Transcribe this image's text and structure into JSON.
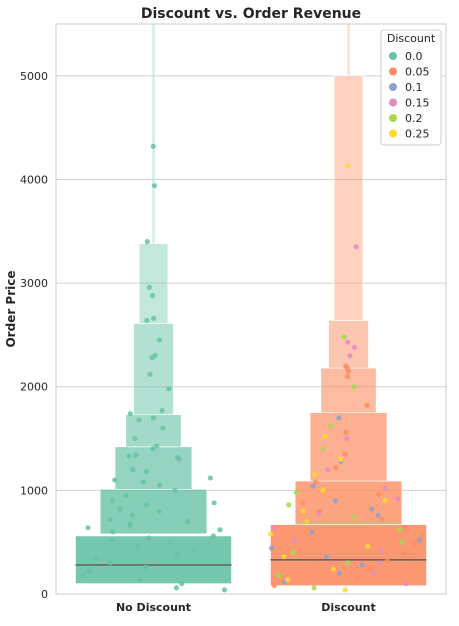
{
  "chart_data": {
    "type": "boxen",
    "title": "Discount vs. Order Revenue",
    "xlabel": "",
    "ylabel": "Order Price",
    "ylim": [
      0,
      5500
    ],
    "yticks": [
      0,
      1000,
      2000,
      3000,
      4000,
      5000
    ],
    "categories": [
      "No Discount",
      "Discount"
    ],
    "grid": true,
    "legend": {
      "title": "Discount",
      "placement": "top-right",
      "entries": [
        {
          "label": "0.0",
          "color": "#66c2a5"
        },
        {
          "label": "0.05",
          "color": "#fc8d62"
        },
        {
          "label": "0.1",
          "color": "#8da0cb"
        },
        {
          "label": "0.15",
          "color": "#e78ac3"
        },
        {
          "label": "0.2",
          "color": "#a6d854"
        },
        {
          "label": "0.25",
          "color": "#ffd92f"
        }
      ]
    },
    "boxen": [
      {
        "category": "No Discount",
        "color": "#66c2a5",
        "median": 280,
        "levels": [
          {
            "low": 100,
            "high": 560
          },
          {
            "low": 580,
            "high": 1010
          },
          {
            "low": 1010,
            "high": 1420
          },
          {
            "low": 1420,
            "high": 1730
          },
          {
            "low": 1730,
            "high": 2610
          },
          {
            "low": 2610,
            "high": 3380
          },
          {
            "low": 3380,
            "high": 5500
          }
        ]
      },
      {
        "category": "Discount",
        "color": "#fc8d62",
        "median": 330,
        "levels": [
          {
            "low": 80,
            "high": 670
          },
          {
            "low": 670,
            "high": 1090
          },
          {
            "low": 1090,
            "high": 1750
          },
          {
            "low": 1750,
            "high": 2180
          },
          {
            "low": 2180,
            "high": 2640
          },
          {
            "low": 2640,
            "high": 5000
          },
          {
            "low": 5000,
            "high": 5500
          }
        ]
      }
    ],
    "outliers": [
      {
        "category": "No Discount",
        "discount": "0.0",
        "values": [
          4320,
          3940,
          3400,
          2960,
          2880,
          2660,
          2640,
          2450,
          2300,
          2280,
          2120,
          1980,
          1770,
          1740,
          1700,
          1680,
          1600,
          1500,
          1430,
          1400,
          1340,
          1330,
          1320,
          1300,
          1200,
          1180,
          1120,
          1100,
          1080,
          1050,
          1000,
          950,
          900,
          880,
          860,
          820,
          800,
          760,
          720,
          700,
          680,
          660,
          640,
          620,
          600,
          560,
          540,
          520,
          500,
          460,
          420,
          380,
          340,
          300,
          260,
          220,
          180,
          140,
          100,
          60,
          40
        ]
      },
      {
        "category": "Discount",
        "discount": "0.05",
        "values": [
          2200,
          2180,
          2150,
          2100,
          1820,
          1560,
          1350,
          1220,
          1080,
          960,
          880,
          800,
          720,
          640,
          560,
          480,
          400,
          320,
          240,
          160,
          80
        ]
      },
      {
        "category": "Discount",
        "discount": "0.1",
        "values": [
          1700,
          1280,
          1040,
          900,
          820,
          760,
          600,
          520,
          440,
          360,
          280,
          200,
          120
        ]
      },
      {
        "category": "Discount",
        "discount": "0.15",
        "values": [
          3350,
          2430,
          2380,
          2300,
          1500,
          1200,
          1020,
          920,
          780,
          640,
          520,
          420,
          300,
          200,
          100
        ]
      },
      {
        "category": "Discount",
        "discount": "0.2",
        "values": [
          2480,
          2000,
          1620,
          1400,
          980,
          860,
          740,
          620,
          500,
          400,
          300,
          180,
          60
        ]
      },
      {
        "category": "Discount",
        "discount": "0.25",
        "values": [
          4130,
          1520,
          1300,
          1150,
          1000,
          900,
          800,
          700,
          580,
          460,
          360,
          240,
          140,
          40
        ]
      }
    ]
  }
}
